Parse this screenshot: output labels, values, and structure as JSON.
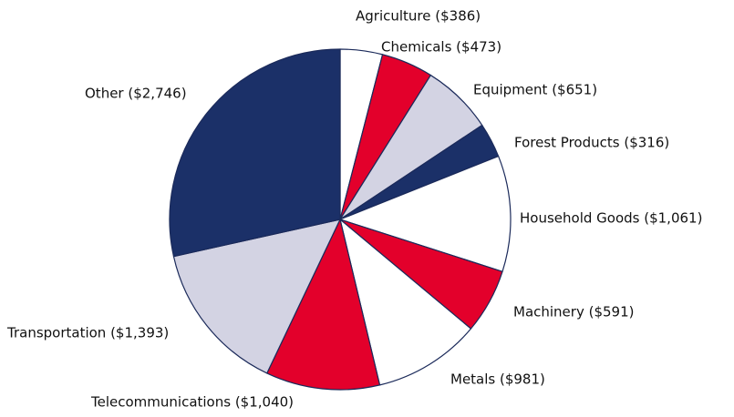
{
  "chart_data": {
    "type": "pie",
    "categories": [
      "Agriculture ($386)",
      "Chemicals ($473)",
      "Equipment ($651)",
      "Forest Products ($316)",
      "Household Goods ($1,061)",
      "Machinery ($591)",
      "Metals ($981)",
      "Telecommunications ($1,040)",
      "Transportation ($1,393)",
      "Other ($2,746)"
    ],
    "values": [
      386,
      473,
      651,
      316,
      1061,
      591,
      981,
      1040,
      1393,
      2746
    ],
    "colors": [
      "#ffffff",
      "#e3002b",
      "#d3d3e3",
      "#1b3068",
      "#ffffff",
      "#e3002b",
      "#ffffff",
      "#e3002b",
      "#d3d3e3",
      "#1b3068"
    ]
  }
}
